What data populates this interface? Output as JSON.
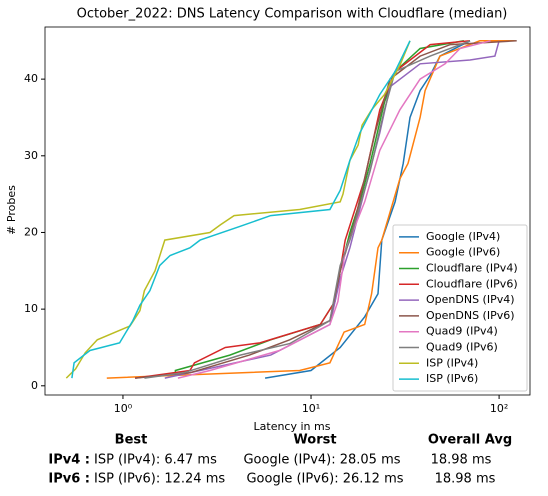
{
  "chart_data": {
    "type": "line",
    "title": "October_2022: DNS Latency Comparison with Cloudflare (median)",
    "xlabel": "Latency in ms",
    "ylabel": "# Probes",
    "xscale": "log",
    "xlim": [
      0.385,
      146
    ],
    "ylim": [
      -1.2,
      46.8
    ],
    "xticks": [
      {
        "value": 1,
        "label": "10⁰"
      },
      {
        "value": 10,
        "label": "10¹"
      },
      {
        "value": 100,
        "label": "10²"
      }
    ],
    "yticks": [
      0,
      10,
      20,
      30,
      40
    ],
    "legend": "lower right",
    "series": [
      {
        "name": "Google (IPv4)",
        "color": "#1f77b4",
        "x": [
          5.7,
          10,
          14.3,
          19.3,
          22.7,
          23.8,
          28,
          30.9,
          33.6,
          38,
          43,
          48.5,
          70
        ],
        "values": [
          1,
          2,
          5,
          9,
          12,
          19,
          24,
          29,
          35,
          38.5,
          40.5,
          43,
          45
        ]
      },
      {
        "name": "Google (IPv6)",
        "color": "#ff7f0e",
        "x": [
          0.82,
          8.7,
          12.6,
          15,
          19.3,
          21,
          22.7,
          23.8,
          29.7,
          32.8,
          38,
          40.4,
          48.5,
          79,
          121
        ],
        "values": [
          1,
          2,
          3,
          7,
          8,
          12,
          18,
          19,
          27,
          29,
          35,
          38.5,
          43,
          45,
          45
        ]
      },
      {
        "name": "Cloudflare (IPv4)",
        "color": "#2ca02c",
        "x": [
          1.9,
          1.9,
          3.7,
          6.1,
          11.2,
          13.4,
          14.3,
          16.1,
          18.2,
          20.6,
          24.6,
          28,
          38,
          65
        ],
        "values": [
          1.3,
          2,
          4,
          6,
          8,
          11,
          15,
          20,
          24,
          29,
          37,
          41,
          44,
          45
        ]
      },
      {
        "name": "Cloudflare (IPv6)",
        "color": "#d62728",
        "x": [
          1.16,
          2.27,
          2.4,
          3.5,
          5.35,
          11.2,
          13.4,
          15.2,
          19.3,
          23.2,
          28,
          43,
          70
        ],
        "values": [
          1,
          2,
          3,
          5,
          5.6,
          8,
          11,
          19,
          27,
          36,
          41,
          44.5,
          45
        ]
      },
      {
        "name": "OpenDNS (IPv4)",
        "color": "#9467bd",
        "x": [
          1.67,
          2.57,
          6.1,
          12.6,
          14.3,
          16.1,
          19.3,
          23.2,
          26.3,
          38,
          70,
          95,
          100
        ],
        "values": [
          1,
          2,
          4,
          8,
          14,
          18,
          25.5,
          33,
          39,
          42,
          42.5,
          43,
          45
        ]
      },
      {
        "name": "OpenDNS (IPv6)",
        "color": "#8c564b",
        "x": [
          1.16,
          2.27,
          4.7,
          7.7,
          12.6,
          14.3,
          17.1,
          21.9,
          26.3,
          38,
          55,
          124
        ],
        "values": [
          1,
          1.7,
          4,
          6,
          8.5,
          15,
          21.5,
          33,
          40,
          43,
          44.5,
          45
        ]
      },
      {
        "name": "Quad9 (IPv4)",
        "color": "#e377c2",
        "x": [
          1.96,
          2.9,
          6.8,
          12.6,
          13.9,
          15.2,
          19.3,
          23.2,
          29.7,
          38,
          51.6,
          62,
          90
        ],
        "values": [
          1,
          2,
          4.6,
          8,
          11,
          17.6,
          24,
          30.7,
          36,
          40,
          42,
          44,
          45
        ]
      },
      {
        "name": "Quad9 (IPv6)",
        "color": "#7f7f7f",
        "x": [
          1.3,
          2.1,
          4.2,
          7.7,
          12.6,
          14.3,
          16.1,
          20.6,
          24.6,
          28,
          43,
          70
        ],
        "values": [
          1,
          1.7,
          4,
          5.5,
          8.5,
          15.7,
          19,
          28,
          36,
          41,
          43,
          45
        ]
      },
      {
        "name": "ISP (IPv4)",
        "color": "#bcbd22",
        "x": [
          0.5,
          0.56,
          0.63,
          0.73,
          1.09,
          1.23,
          1.3,
          1.48,
          1.67,
          2.9,
          3.3,
          3.9,
          8.7,
          14.3,
          14.8,
          16.1,
          17.8,
          18.7,
          21,
          24.6,
          29.7,
          33.6
        ],
        "values": [
          1,
          2.2,
          4.3,
          6,
          7.8,
          9.8,
          12.4,
          15,
          19,
          20,
          21,
          22.2,
          23,
          24,
          25,
          29.4,
          31.4,
          34,
          36,
          38,
          41.8,
          45
        ]
      },
      {
        "name": "ISP (IPv6)",
        "color": "#17becf",
        "x": [
          0.535,
          0.55,
          0.667,
          0.96,
          1.13,
          1.23,
          1.39,
          1.57,
          1.78,
          2.27,
          2.57,
          4.2,
          6.1,
          12.6,
          14.3,
          16.1,
          18.2,
          23.2,
          28,
          33.6
        ],
        "values": [
          1,
          3,
          4.6,
          5.6,
          8.5,
          10.5,
          12.4,
          15.7,
          17,
          18,
          19,
          20.8,
          22.2,
          23,
          25.5,
          29.4,
          33,
          38,
          41,
          45
        ]
      }
    ]
  },
  "table": {
    "headers": [
      "Best",
      "Worst",
      "Overall Avg"
    ],
    "rows": [
      [
        "IPv4 :",
        "ISP (IPv4): 6.47 ms",
        "Google (IPv4): 28.05 ms",
        "18.98 ms"
      ],
      [
        "IPv6 :",
        "ISP (IPv6): 12.24 ms",
        "Google (IPv6): 26.12 ms",
        "18.98 ms"
      ]
    ]
  }
}
